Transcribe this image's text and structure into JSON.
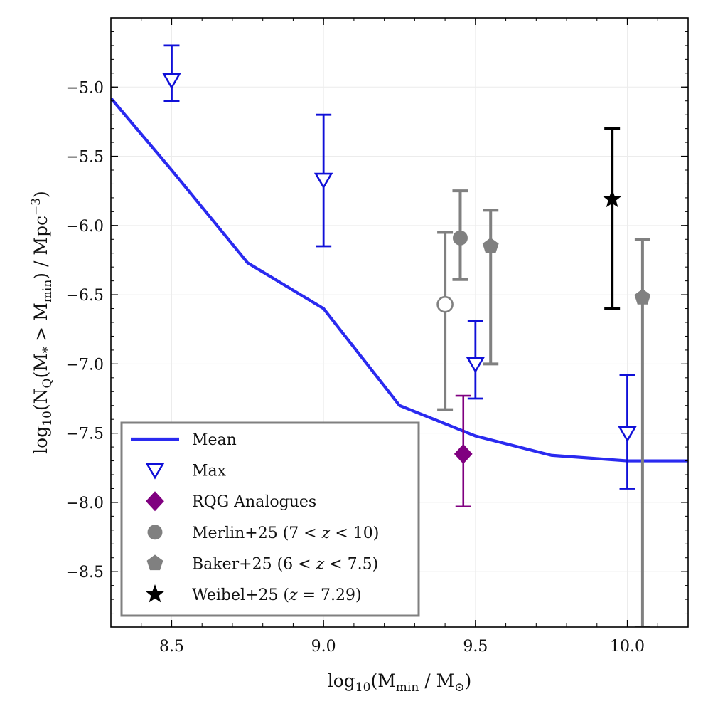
{
  "chart_data": {
    "type": "scatter",
    "xlabel": "log10(Mmin / M☉)",
    "ylabel": "log10(NQ(M* > Mmin) / Mpc−3)",
    "xlim": [
      8.3,
      10.2
    ],
    "ylim": [
      -8.9,
      -4.5
    ],
    "xticks": [
      8.5,
      9.0,
      9.5,
      10.0
    ],
    "xtick_labels": [
      "8.5",
      "9.0",
      "9.5",
      "10.0"
    ],
    "yticks": [
      -5.0,
      -5.5,
      -6.0,
      -6.5,
      -7.0,
      -7.5,
      -8.0,
      -8.5
    ],
    "ytick_labels": [
      "−5.0",
      "−5.5",
      "−6.0",
      "−6.5",
      "−7.0",
      "−7.5",
      "−8.0",
      "−8.5"
    ],
    "grid": true,
    "legend_position": "bottom-left",
    "colors": {
      "mean": "#2a2af0",
      "max": "#1010d8",
      "rqg": "#800080",
      "literature": "#808080",
      "weibel": "#000000"
    },
    "series": [
      {
        "name": "Mean",
        "label": "Mean",
        "kind": "line",
        "x": [
          8.3,
          8.5,
          8.75,
          9.0,
          9.25,
          9.5,
          9.75,
          10.0,
          10.2
        ],
        "y": [
          -5.08,
          -5.6,
          -6.27,
          -6.6,
          -7.3,
          -7.52,
          -7.66,
          -7.7,
          -7.7
        ]
      },
      {
        "name": "Max",
        "label": "Max",
        "kind": "open-triangle-down",
        "points": [
          {
            "x": 8.5,
            "y": -4.95,
            "lo": -5.1,
            "hi": -4.7
          },
          {
            "x": 9.0,
            "y": -5.67,
            "lo": -6.15,
            "hi": -5.2
          },
          {
            "x": 9.5,
            "y": -7.0,
            "lo": -7.25,
            "hi": -6.69
          },
          {
            "x": 10.0,
            "y": -7.5,
            "lo": -7.9,
            "hi": -7.08
          }
        ]
      },
      {
        "name": "RQG Analogues",
        "label": "RQG Analogues",
        "kind": "diamond",
        "points": [
          {
            "x": 9.46,
            "y": -7.65,
            "lo": -8.03,
            "hi": -7.23
          }
        ]
      },
      {
        "name": "Merlin+25",
        "label_prefix": "Merlin+25 (7 < ",
        "label_var": "z",
        "label_suffix": " < 10)",
        "kind": "circle",
        "points": [
          {
            "x": 9.45,
            "y": -6.09,
            "lo": -6.39,
            "hi": -5.75,
            "open": false
          },
          {
            "x": 9.4,
            "y": -6.57,
            "lo": -7.33,
            "hi": -6.05,
            "open": true
          }
        ]
      },
      {
        "name": "Baker+25",
        "label_prefix": "Baker+25 (6 < ",
        "label_var": "z",
        "label_suffix": " < 7.5)",
        "kind": "pentagon",
        "points": [
          {
            "x": 9.55,
            "y": -6.15,
            "lo": -7.0,
            "hi": -5.89
          },
          {
            "x": 10.05,
            "y": -6.52,
            "lo": -8.9,
            "hi": -6.1
          }
        ]
      },
      {
        "name": "Weibel+25",
        "label_prefix": "Weibel+25 (",
        "label_var": "z",
        "label_suffix": " = 7.29)",
        "kind": "star",
        "points": [
          {
            "x": 9.95,
            "y": -5.81,
            "lo": -6.6,
            "hi": -5.3
          }
        ]
      }
    ]
  }
}
